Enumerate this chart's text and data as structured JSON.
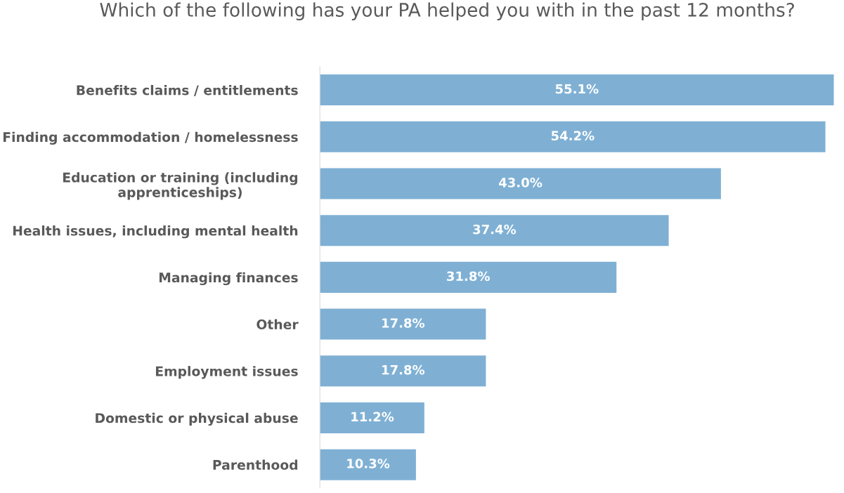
{
  "chart_data": {
    "type": "bar",
    "orientation": "horizontal",
    "title": "Which of the following has your PA helped you with in the past 12 months?",
    "categories": [
      "Benefits claims / entitlements",
      "Finding accommodation / homelessness",
      "Education or training (including\napprenticeships)",
      "Health issues, including mental health",
      "Managing finances",
      "Other",
      "Employment issues",
      "Domestic or physical abuse",
      "Parenthood"
    ],
    "values": [
      55.1,
      54.2,
      43.0,
      37.4,
      31.8,
      17.8,
      17.8,
      11.2,
      10.3
    ],
    "value_labels": [
      "55.1%",
      "54.2%",
      "43.0%",
      "37.4%",
      "31.8%",
      "17.8%",
      "17.8%",
      "11.2%",
      "10.3%"
    ],
    "color": "#7fb0d4"
  }
}
